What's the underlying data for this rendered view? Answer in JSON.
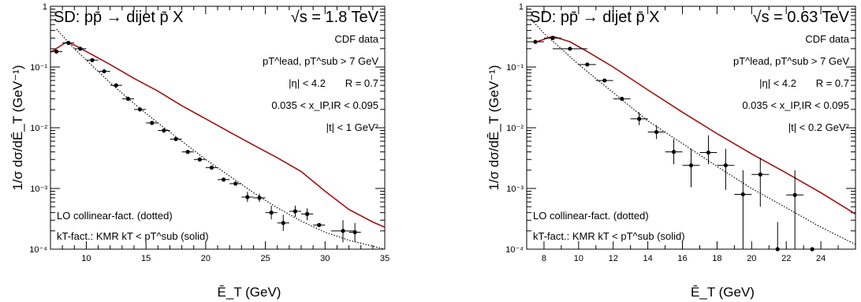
{
  "chart_data": [
    {
      "type": "scatter",
      "title_left": "SD: pp̄ → dijet p̄ X",
      "title_right": "√s = 1.8 TeV",
      "xlabel": "Ē_T (GeV)",
      "ylabel": "1/σ  dσ/dĒ_T (GeV⁻¹)",
      "xlim": [
        7,
        35
      ],
      "ylim": [
        0.0001,
        1
      ],
      "yscale": "log",
      "xticks": [
        10,
        15,
        20,
        25,
        30,
        35
      ],
      "yticks": [
        "10⁻⁴",
        "10⁻³",
        "10⁻²",
        "10⁻¹",
        "1"
      ],
      "annotations": [
        "CDF data",
        "pT^lead, pT^sub > 7 GeV",
        "|η| < 4.2",
        "R = 0.7",
        "0.035 < x_IP,IR < 0.095",
        "|t| < 1 GeV²"
      ],
      "legend": [
        "LO collinear-fact. (dotted)",
        "kT-fact.: KMR kT < pT^sub (solid)"
      ],
      "colors": {
        "data": "#000000",
        "solid": "#a01010",
        "dotted": "#000000"
      },
      "series": [
        {
          "points": [
            {
              "x": 7.5,
              "y": 0.18,
              "xerr": 0.5
            },
            {
              "x": 8.5,
              "y": 0.25,
              "xerr": 0.5
            },
            {
              "x": 9.5,
              "y": 0.2,
              "xerr": 0.5
            },
            {
              "x": 10.5,
              "y": 0.13,
              "xerr": 0.5
            },
            {
              "x": 11.5,
              "y": 0.085,
              "xerr": 0.5
            },
            {
              "x": 12.5,
              "y": 0.05,
              "xerr": 0.5
            },
            {
              "x": 13.5,
              "y": 0.03,
              "xerr": 0.5
            },
            {
              "x": 14.5,
              "y": 0.02,
              "xerr": 0.5
            },
            {
              "x": 15.5,
              "y": 0.012,
              "xerr": 0.5
            },
            {
              "x": 16.5,
              "y": 0.009,
              "xerr": 0.5
            },
            {
              "x": 17.5,
              "y": 0.0065,
              "xerr": 0.5
            },
            {
              "x": 18.5,
              "y": 0.004,
              "xerr": 0.5
            },
            {
              "x": 19.5,
              "y": 0.003,
              "xerr": 0.5
            },
            {
              "x": 20.5,
              "y": 0.0022,
              "xerr": 0.5
            },
            {
              "x": 21.5,
              "y": 0.0014,
              "xerr": 0.5
            },
            {
              "x": 22.5,
              "y": 0.0012,
              "xerr": 0.5
            },
            {
              "x": 23.5,
              "y": 0.00072,
              "xerr": 0.5,
              "ylo": 0.0006,
              "yhi": 0.00088
            },
            {
              "x": 24.5,
              "y": 0.0007,
              "xerr": 0.5,
              "ylo": 0.0006,
              "yhi": 0.00082
            },
            {
              "x": 25.5,
              "y": 0.0004,
              "xerr": 0.5,
              "ylo": 0.00031,
              "yhi": 0.00052
            },
            {
              "x": 26.5,
              "y": 0.00027,
              "xerr": 0.5,
              "ylo": 0.0002,
              "yhi": 0.00037
            },
            {
              "x": 27.5,
              "y": 0.00042,
              "xerr": 0.5,
              "ylo": 0.00034,
              "yhi": 0.00052
            },
            {
              "x": 28.5,
              "y": 0.00038,
              "xerr": 0.5,
              "ylo": 0.0003,
              "yhi": 0.00047
            },
            {
              "x": 29.5,
              "y": 0.00025,
              "xerr": 0.5
            },
            {
              "x": 31.5,
              "y": 0.0002,
              "xerr": 1,
              "ylo": 0.00013,
              "yhi": 0.0003
            },
            {
              "x": 32.5,
              "y": 0.00019,
              "xerr": 0.5,
              "ylo": 0.00013,
              "yhi": 0.00027
            }
          ]
        },
        {
          "name": "solid",
          "points": [
            [
              7,
              0.175
            ],
            [
              8.3,
              0.255
            ],
            [
              9,
              0.23
            ],
            [
              10,
              0.18
            ],
            [
              12,
              0.11
            ],
            [
              14,
              0.065
            ],
            [
              16,
              0.04
            ],
            [
              18,
              0.023
            ],
            [
              20,
              0.014
            ],
            [
              22,
              0.0085
            ],
            [
              24,
              0.0052
            ],
            [
              26,
              0.0032
            ],
            [
              28,
              0.0019
            ],
            [
              30,
              0.0009
            ],
            [
              32,
              0.00045
            ],
            [
              34,
              0.00028
            ],
            [
              35,
              0.00023
            ]
          ]
        },
        {
          "name": "dotted",
          "points": [
            [
              7.5,
              0.42
            ],
            [
              9,
              0.2
            ],
            [
              10,
              0.13
            ],
            [
              12,
              0.055
            ],
            [
              14,
              0.025
            ],
            [
              16,
              0.012
            ],
            [
              18,
              0.006
            ],
            [
              20,
              0.003
            ],
            [
              22,
              0.0016
            ],
            [
              24,
              0.00085
            ],
            [
              26,
              0.00048
            ],
            [
              28,
              0.00029
            ],
            [
              30,
              0.00019
            ],
            [
              32,
              0.00014
            ],
            [
              35,
              0.0001
            ]
          ]
        }
      ]
    },
    {
      "type": "scatter",
      "title_left": "SD: pp̄ → dijet p̄ X",
      "title_right": "√s = 0.63 TeV",
      "xlabel": "Ē_T (GeV)",
      "ylabel": "1/σ  dσ/dĒ_T (GeV⁻¹)",
      "xlim": [
        7,
        26
      ],
      "ylim": [
        0.0001,
        1
      ],
      "yscale": "log",
      "xticks": [
        8,
        10,
        12,
        14,
        16,
        18,
        20,
        22,
        24
      ],
      "yticks": [
        "10⁻⁴",
        "10⁻³",
        "10⁻²",
        "10⁻¹",
        "1"
      ],
      "annotations": [
        "CDF data",
        "pT^lead, pT^sub > 7 GeV",
        "|η| < 4.2",
        "R = 0.7",
        "0.035 < x_IP,IR < 0.095",
        "|t| < 0.2 GeV²"
      ],
      "legend": [
        "LO collinear-fact. (dotted)",
        "kT-fact.: KMR kT < pT^sub (solid)"
      ],
      "colors": {
        "data": "#000000",
        "solid": "#a01010",
        "dotted": "#000000"
      },
      "series": [
        {
          "points": [
            {
              "x": 7.5,
              "y": 0.26,
              "xerr": 0.5
            },
            {
              "x": 8.5,
              "y": 0.3,
              "xerr": 0.5
            },
            {
              "x": 9.5,
              "y": 0.2,
              "xerr": 1
            },
            {
              "x": 10.5,
              "y": 0.11,
              "xerr": 0.5
            },
            {
              "x": 11.5,
              "y": 0.06,
              "xerr": 0.5
            },
            {
              "x": 12.5,
              "y": 0.03,
              "xerr": 0.5
            },
            {
              "x": 13.5,
              "y": 0.014,
              "xerr": 0.5,
              "ylo": 0.011,
              "yhi": 0.018
            },
            {
              "x": 14.5,
              "y": 0.0085,
              "xerr": 0.5,
              "ylo": 0.0065,
              "yhi": 0.011
            },
            {
              "x": 15.5,
              "y": 0.004,
              "xerr": 0.5,
              "ylo": 0.0025,
              "yhi": 0.0065
            },
            {
              "x": 16.5,
              "y": 0.0024,
              "xerr": 0.5,
              "ylo": 0.00105,
              "yhi": 0.0045
            },
            {
              "x": 17.5,
              "y": 0.0039,
              "xerr": 0.5,
              "ylo": 0.0025,
              "yhi": 0.0075
            },
            {
              "x": 18.5,
              "y": 0.0024,
              "xerr": 0.5,
              "ylo": 0.00095,
              "yhi": 0.0045
            },
            {
              "x": 19.5,
              "y": 0.0008,
              "xerr": 0.5,
              "ylo": 0.0001,
              "yhi": 0.002
            },
            {
              "x": 20.5,
              "y": 0.0017,
              "xerr": 0.5,
              "ylo": 0.0005,
              "yhi": 0.0032
            },
            {
              "x": 21.5,
              "y": 0.0001,
              "xerr": 0.5,
              "ylo": 0.0001,
              "yhi": 0.00028
            },
            {
              "x": 22.5,
              "y": 0.00078,
              "xerr": 0.5,
              "ylo": 0.0001,
              "yhi": 0.002
            },
            {
              "x": 23.5,
              "y": 0.0001,
              "xerr": 0.5
            }
          ]
        },
        {
          "name": "solid",
          "points": [
            [
              7.4,
              0.25
            ],
            [
              8.5,
              0.32
            ],
            [
              9.5,
              0.26
            ],
            [
              10.5,
              0.18
            ],
            [
              12,
              0.1
            ],
            [
              14,
              0.042
            ],
            [
              16,
              0.018
            ],
            [
              18,
              0.008
            ],
            [
              20,
              0.0037
            ],
            [
              22,
              0.0018
            ],
            [
              24,
              0.00085
            ],
            [
              26,
              0.00038
            ]
          ]
        },
        {
          "name": "dotted",
          "points": [
            [
              7.4,
              0.55
            ],
            [
              8,
              0.36
            ],
            [
              9,
              0.2
            ],
            [
              10,
              0.11
            ],
            [
              12,
              0.038
            ],
            [
              14,
              0.013
            ],
            [
              16,
              0.0055
            ],
            [
              18,
              0.0023
            ],
            [
              20,
              0.001
            ],
            [
              22,
              0.00048
            ],
            [
              24,
              0.00023
            ],
            [
              26,
              0.00012
            ]
          ]
        }
      ]
    }
  ]
}
